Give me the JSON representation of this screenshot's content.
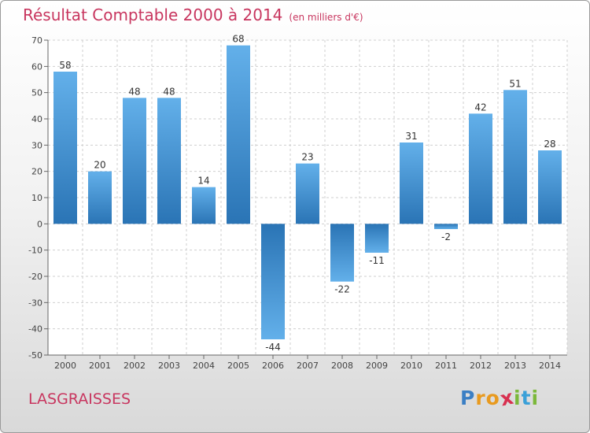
{
  "chart_data": {
    "type": "bar",
    "title": "Résultat Comptable 2000 à 2014",
    "subtitle": "(en milliers d'€)",
    "xlabel": "",
    "ylabel": "",
    "ylim": [
      -50,
      70
    ],
    "yticks": [
      70,
      60,
      50,
      40,
      30,
      20,
      10,
      0,
      -10,
      -20,
      -30,
      -40,
      -50
    ],
    "grid": true,
    "categories": [
      "2000",
      "2001",
      "2002",
      "2003",
      "2004",
      "2005",
      "2006",
      "2007",
      "2008",
      "2009",
      "2010",
      "2011",
      "2012",
      "2013",
      "2014"
    ],
    "values": [
      58,
      20,
      48,
      48,
      14,
      68,
      -44,
      23,
      -22,
      -11,
      31,
      -2,
      42,
      51,
      28
    ]
  },
  "commune": "LASGRAISSES",
  "logo": {
    "letters": [
      "P",
      "r",
      "o",
      "x",
      "i",
      "t",
      "i"
    ],
    "colors": [
      "#3b7fc4",
      "#e89a1f",
      "#e89a1f",
      "#d8304f",
      "#7bb83a",
      "#3aa0d8",
      "#7bb83a"
    ]
  },
  "colors": {
    "bar_dark": "#2a74b5",
    "bar_light": "#63b0ea",
    "title": "#c8365f",
    "grid": "#cfcfcf",
    "axis": "#666666"
  }
}
